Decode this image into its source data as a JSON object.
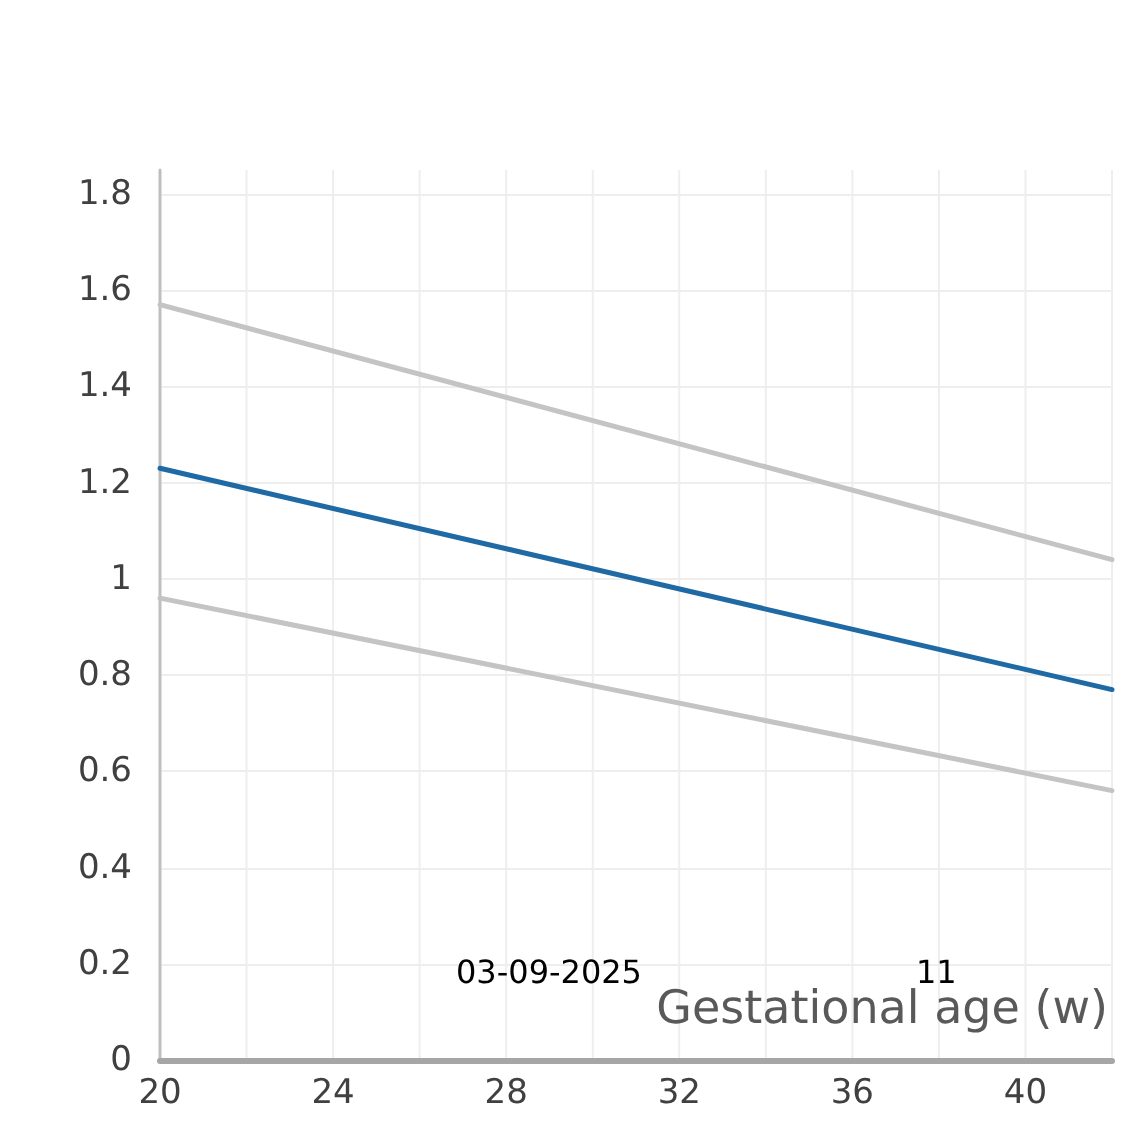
{
  "chart_data": {
    "type": "line",
    "xlabel": "Gestational age (w)",
    "annotations": [
      "03-09-2025",
      "11"
    ],
    "x": [
      20,
      42
    ],
    "series": [
      {
        "color": "#c4c4c4",
        "values": [
          1.57,
          1.04
        ]
      },
      {
        "color": "#1f6aa5",
        "values": [
          1.23,
          0.77
        ]
      },
      {
        "color": "#c4c4c4",
        "values": [
          0.96,
          0.56
        ]
      }
    ],
    "xlim": [
      20,
      42
    ],
    "xticks": [
      20,
      {
        "value": 22,
        "label": null
      },
      24,
      {
        "value": 26,
        "label": null
      },
      28,
      {
        "value": 30,
        "label": null
      },
      32,
      {
        "value": 34,
        "label": null
      },
      36,
      {
        "value": 38,
        "label": null
      },
      40,
      {
        "value": 42,
        "label": null
      }
    ],
    "ylim": [
      0,
      1.85
    ],
    "yticks": [
      0,
      0.2,
      0.4,
      0.6,
      0.8,
      1,
      1.2,
      1.4,
      1.6,
      1.8
    ],
    "grid": true,
    "marker": "none",
    "line_style": "solid"
  }
}
